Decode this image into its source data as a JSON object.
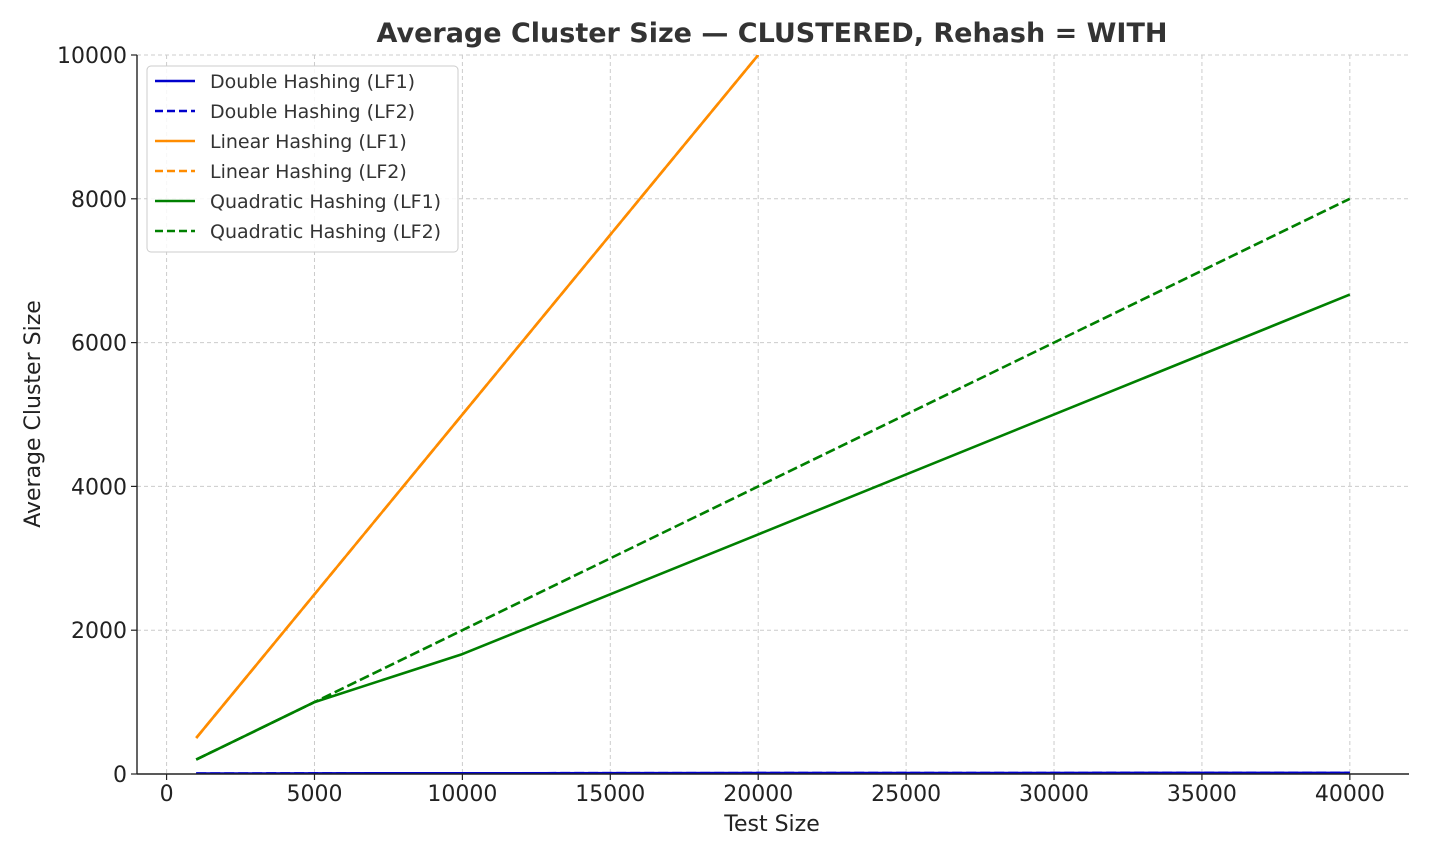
{
  "chart_data": {
    "type": "line",
    "title": "Average Cluster Size — CLUSTERED, Rehash = WITH",
    "xlabel": "Test Size",
    "ylabel": "Average Cluster Size",
    "xlim": [
      -1000,
      42000
    ],
    "ylim": [
      0,
      10000
    ],
    "xticks": [
      0,
      5000,
      10000,
      15000,
      20000,
      25000,
      30000,
      35000,
      40000
    ],
    "yticks": [
      0,
      2000,
      4000,
      6000,
      8000,
      10000
    ],
    "xtick_labels": [
      "0",
      "5000",
      "10000",
      "15000",
      "20000",
      "25000",
      "30000",
      "35000",
      "40000"
    ],
    "ytick_labels": [
      "0",
      "2000",
      "4000",
      "6000",
      "8000",
      "10000"
    ],
    "grid": true,
    "legend_position": "top-left",
    "series": [
      {
        "name": "Double Hashing (LF1)",
        "color": "#0000cc",
        "dash": "solid",
        "x": [
          1000,
          5000,
          10000,
          20000,
          40000
        ],
        "y": [
          5,
          8,
          10,
          12,
          15
        ]
      },
      {
        "name": "Double Hashing (LF2)",
        "color": "#0000cc",
        "dash": "dashed",
        "x": [
          1000,
          5000,
          10000,
          20000,
          40000
        ],
        "y": [
          5,
          8,
          10,
          12,
          15
        ]
      },
      {
        "name": "Linear Hashing (LF1)",
        "color": "#ff8c00",
        "dash": "solid",
        "x": [
          1000,
          5000,
          10000,
          20000
        ],
        "y": [
          500,
          2500,
          5000,
          10000
        ]
      },
      {
        "name": "Linear Hashing (LF2)",
        "color": "#ff8c00",
        "dash": "dashed",
        "x": [
          1000,
          5000,
          10000,
          20000
        ],
        "y": [
          500,
          2500,
          5000,
          10000
        ]
      },
      {
        "name": "Quadratic Hashing (LF1)",
        "color": "#008000",
        "dash": "solid",
        "x": [
          1000,
          5000,
          10000,
          20000,
          40000
        ],
        "y": [
          200,
          1000,
          1667,
          3333,
          6667
        ]
      },
      {
        "name": "Quadratic Hashing (LF2)",
        "color": "#008000",
        "dash": "dashed",
        "x": [
          1000,
          5000,
          10000,
          20000,
          40000
        ],
        "y": [
          200,
          1000,
          2000,
          4000,
          8000
        ]
      }
    ]
  }
}
